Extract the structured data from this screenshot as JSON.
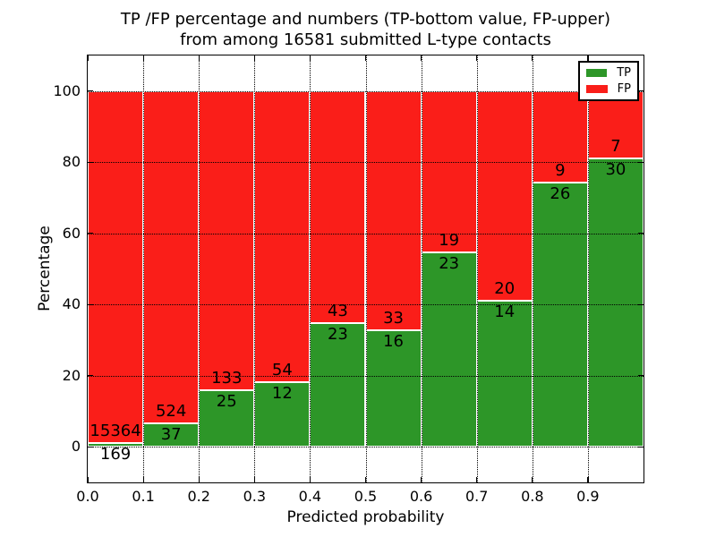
{
  "chart_data": {
    "type": "bar",
    "stacked": true,
    "title": "TP /FP percentage and numbers (TP-bottom value, FP-upper) from among 16581 submitted L-type contacts",
    "title_lines": [
      "TP /FP percentage and numbers (TP-bottom value, FP-upper)",
      "from among 16581 submitted L-type contacts"
    ],
    "submitted_total": 16581,
    "xlabel": "Predicted probability",
    "ylabel": "Percentage",
    "x": [
      0.0,
      0.1,
      0.2,
      0.3,
      0.4,
      0.5,
      0.6,
      0.7,
      0.8,
      0.9
    ],
    "bin_width": 0.1,
    "xtick_labels": [
      "0.0",
      "0.1",
      "0.2",
      "0.3",
      "0.4",
      "0.5",
      "0.6",
      "0.7",
      "0.8",
      "0.9"
    ],
    "yticks": [
      0,
      20,
      40,
      60,
      80,
      100
    ],
    "xlim": [
      0,
      1
    ],
    "ylim": [
      -10,
      110
    ],
    "grid": "dotted",
    "series": [
      {
        "name": "TP",
        "color": "#2d9628",
        "counts": [
          169,
          37,
          25,
          12,
          23,
          16,
          23,
          14,
          26,
          30
        ]
      },
      {
        "name": "FP",
        "color": "#fa1e19",
        "counts": [
          15364,
          524,
          133,
          54,
          43,
          33,
          19,
          20,
          9,
          7
        ]
      }
    ],
    "tp_percent_of_bin": [
      1.09,
      6.6,
      15.82,
      18.18,
      34.85,
      32.65,
      54.76,
      41.18,
      74.29,
      81.08
    ],
    "legend": {
      "position": "upper right",
      "entries": [
        {
          "label": "TP",
          "color": "#2d9628"
        },
        {
          "label": "FP",
          "color": "#fa1e19"
        }
      ]
    }
  }
}
